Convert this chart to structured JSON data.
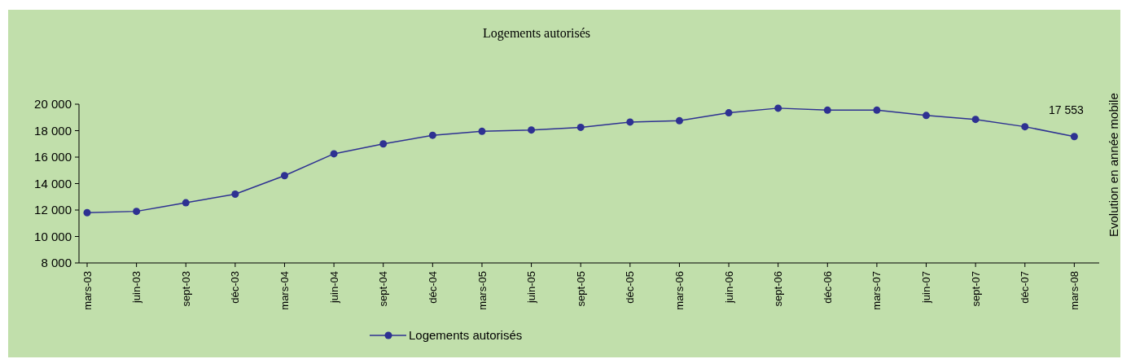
{
  "chart_data": {
    "type": "line",
    "title": "Logements autorisés",
    "annotations": [
      "Evolution en année mobile"
    ],
    "categories": [
      "mars-03",
      "juin-03",
      "sept-03",
      "déc-03",
      "mars-04",
      "juin-04",
      "sept-04",
      "déc-04",
      "mars-05",
      "juin-05",
      "sept-05",
      "déc-05",
      "mars-06",
      "juin-06",
      "sept-06",
      "déc-06",
      "mars-07",
      "juin-07",
      "sept-07",
      "déc-07",
      "mars-08"
    ],
    "series": [
      {
        "name": "Logements autorisés",
        "color": "#2e3192",
        "values": [
          11800,
          11900,
          12550,
          13200,
          14600,
          16250,
          17000,
          17650,
          17950,
          18050,
          18250,
          18650,
          18750,
          19350,
          19700,
          19550,
          19550,
          19150,
          18850,
          18300,
          17553
        ],
        "value_labels": [
          null,
          null,
          null,
          null,
          null,
          null,
          null,
          null,
          null,
          null,
          null,
          null,
          null,
          null,
          null,
          null,
          null,
          null,
          null,
          null,
          "17 553"
        ]
      }
    ],
    "ylim": [
      8000,
      20000
    ],
    "yticks": [
      {
        "value": 8000,
        "label": "8 000"
      },
      {
        "value": 10000,
        "label": "10 000"
      },
      {
        "value": 12000,
        "label": "12 000"
      },
      {
        "value": 14000,
        "label": "14 000"
      },
      {
        "value": 16000,
        "label": "16 000"
      },
      {
        "value": 18000,
        "label": "18 000"
      },
      {
        "value": 20000,
        "label": "20 000"
      }
    ],
    "grid": false,
    "legend": "bottom",
    "marker": "circle",
    "line_style": "solid"
  }
}
